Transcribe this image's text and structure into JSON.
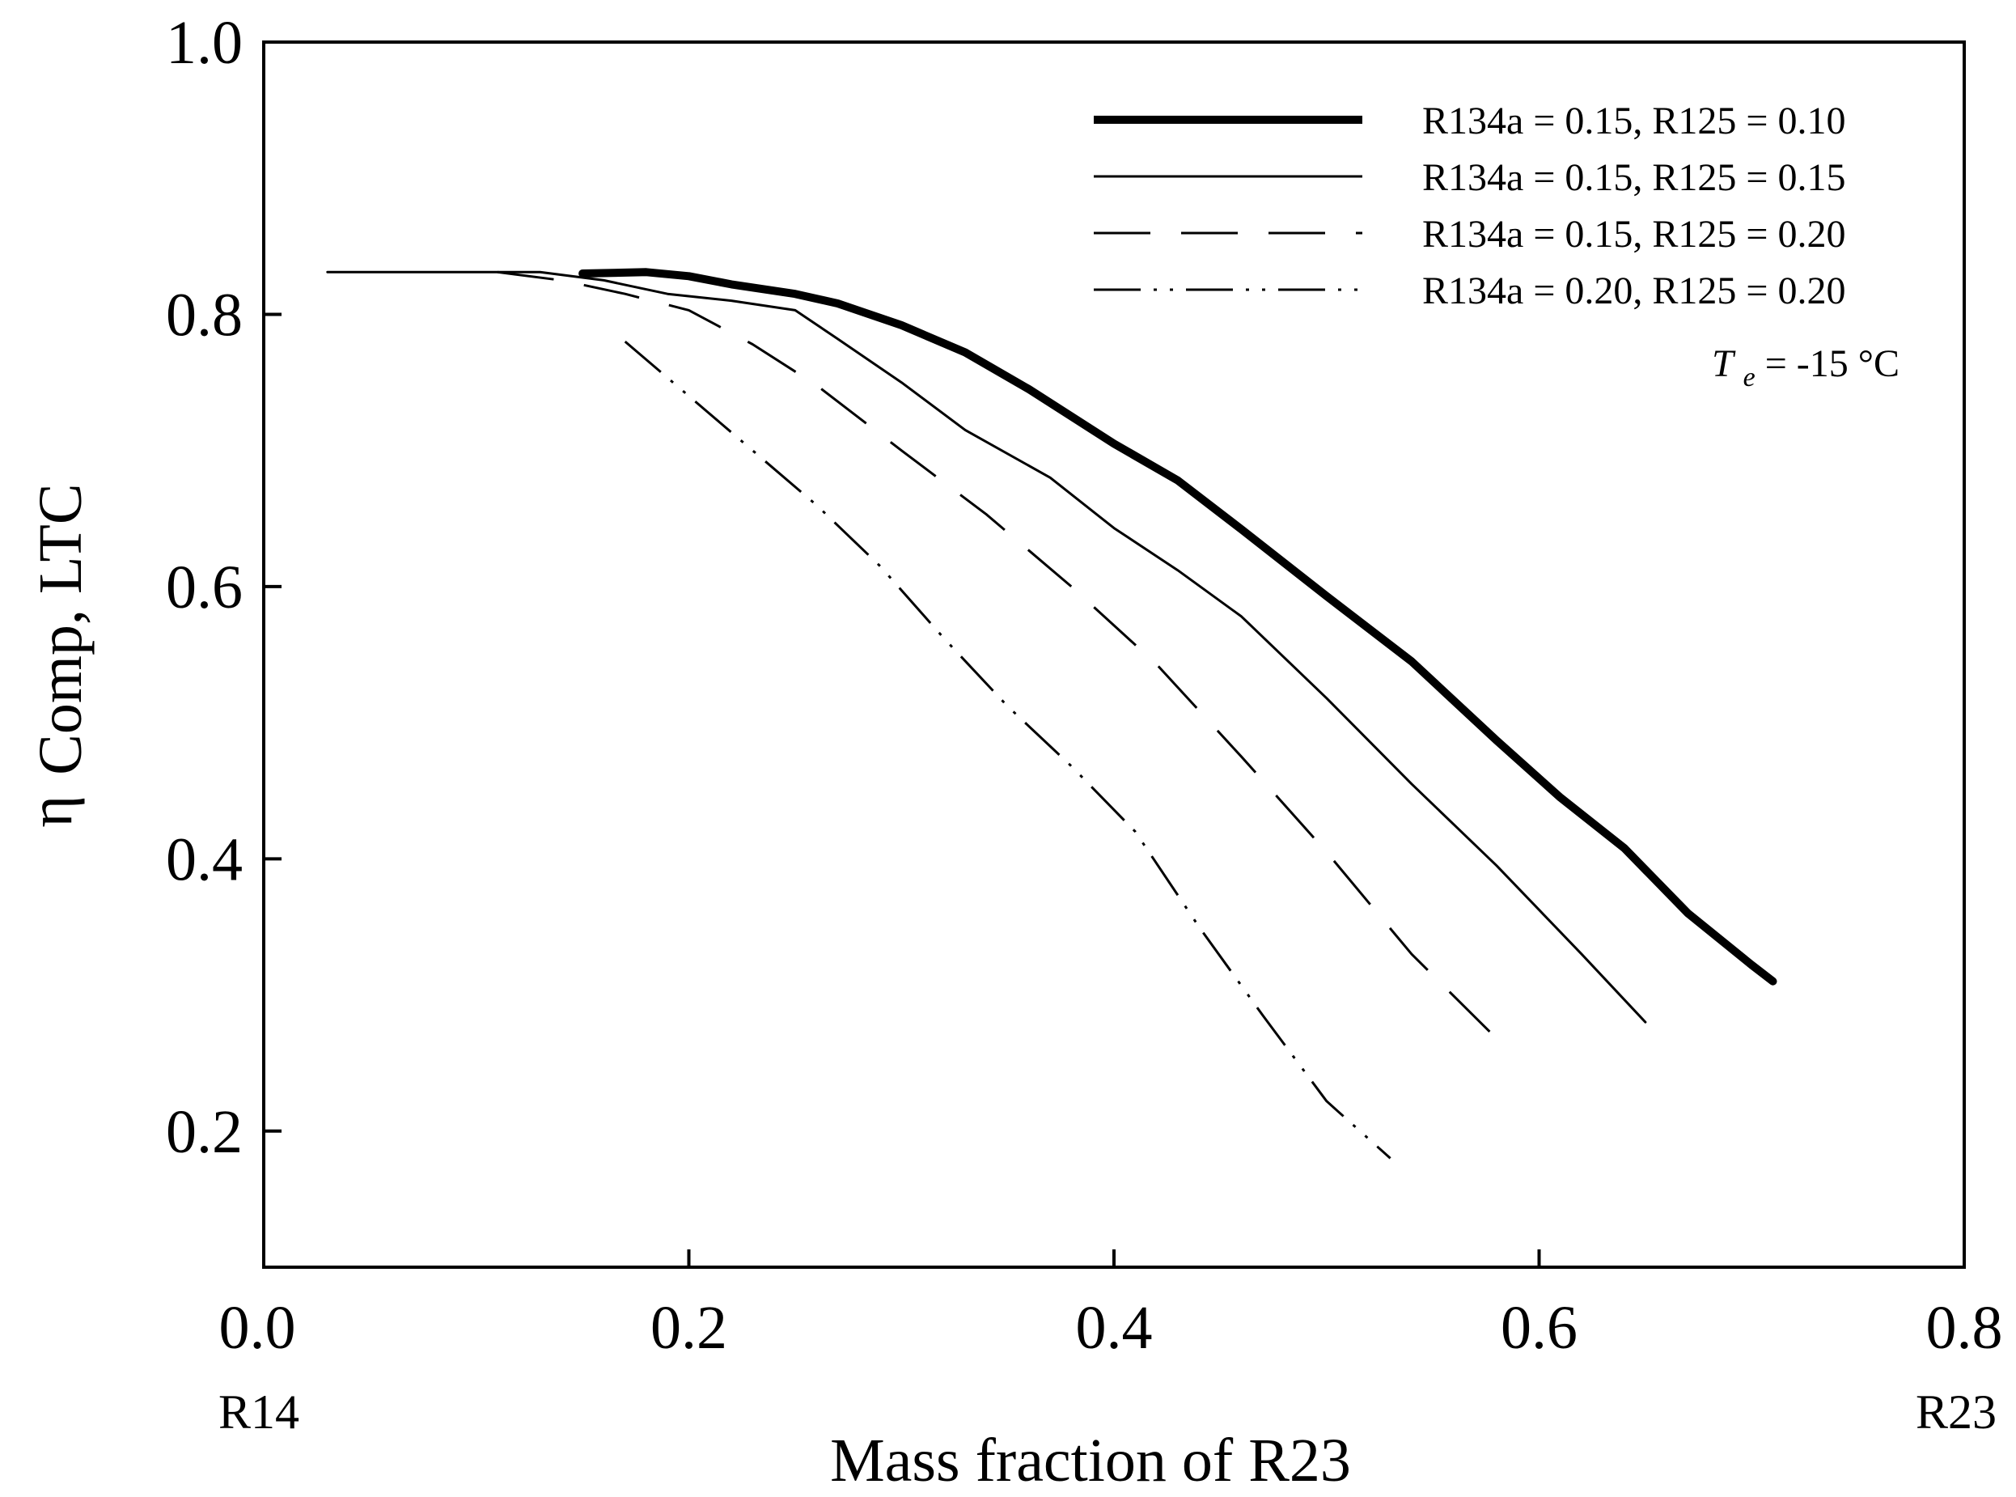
{
  "chart_data": {
    "type": "line",
    "title": "",
    "xlabel": "Mass fraction of R23",
    "ylabel": {
      "symbol": "η",
      "subscript": "Comp, LTC"
    },
    "xlim": [
      0.0,
      0.8
    ],
    "ylim": [
      0.1,
      1.0
    ],
    "x_ticks": [
      {
        "value": 0.0,
        "label": "0.0"
      },
      {
        "value": 0.2,
        "label": "0.2"
      },
      {
        "value": 0.4,
        "label": "0.4"
      },
      {
        "value": 0.6,
        "label": "0.6"
      },
      {
        "value": 0.8,
        "label": "0.8"
      }
    ],
    "x_end_labels": {
      "left": "R14",
      "right": "R23"
    },
    "y_ticks": [
      {
        "value": 0.2,
        "label": "0.2"
      },
      {
        "value": 0.4,
        "label": "0.4"
      },
      {
        "value": 0.6,
        "label": "0.6"
      },
      {
        "value": 0.8,
        "label": "0.8"
      },
      {
        "value": 1.0,
        "label": "1.0"
      }
    ],
    "grid": false,
    "legend_position": "top-right",
    "annotation": {
      "italic": "T",
      "subscript": "e",
      "rest": " = -15 °C"
    },
    "series": [
      {
        "name": "R134a = 0.15, R125 = 0.10",
        "style": "thick-solid",
        "x": [
          0.15,
          0.18,
          0.2,
          0.22,
          0.25,
          0.27,
          0.3,
          0.33,
          0.36,
          0.4,
          0.43,
          0.46,
          0.5,
          0.54,
          0.58,
          0.61,
          0.64,
          0.67,
          0.7,
          0.71
        ],
        "y": [
          0.83,
          0.831,
          0.828,
          0.822,
          0.815,
          0.808,
          0.792,
          0.772,
          0.745,
          0.705,
          0.678,
          0.642,
          0.593,
          0.545,
          0.487,
          0.445,
          0.408,
          0.36,
          0.322,
          0.31
        ]
      },
      {
        "name": "R134a = 0.15, R125 = 0.15",
        "style": "thin-solid",
        "x": [
          0.03,
          0.08,
          0.13,
          0.16,
          0.19,
          0.22,
          0.25,
          0.27,
          0.3,
          0.33,
          0.37,
          0.4,
          0.43,
          0.46,
          0.5,
          0.54,
          0.58,
          0.62,
          0.65
        ],
        "y": [
          0.831,
          0.831,
          0.831,
          0.825,
          0.815,
          0.81,
          0.803,
          0.782,
          0.75,
          0.715,
          0.68,
          0.643,
          0.612,
          0.578,
          0.518,
          0.455,
          0.395,
          0.33,
          0.28
        ]
      },
      {
        "name": "R134a = 0.15, R125 = 0.20",
        "style": "dashed",
        "x": [
          0.11,
          0.14,
          0.17,
          0.2,
          0.23,
          0.26,
          0.3,
          0.34,
          0.38,
          0.42,
          0.46,
          0.5,
          0.54,
          0.58
        ],
        "y": [
          0.831,
          0.825,
          0.815,
          0.803,
          0.778,
          0.748,
          0.7,
          0.653,
          0.6,
          0.543,
          0.475,
          0.405,
          0.33,
          0.268
        ]
      },
      {
        "name": "R134a = 0.20, R125 = 0.20",
        "style": "dash-dot-dot",
        "x": [
          0.17,
          0.2,
          0.23,
          0.26,
          0.29,
          0.32,
          0.35,
          0.38,
          0.41,
          0.44,
          0.47,
          0.5,
          0.53
        ],
        "y": [
          0.78,
          0.74,
          0.7,
          0.66,
          0.615,
          0.562,
          0.512,
          0.468,
          0.42,
          0.35,
          0.285,
          0.222,
          0.18
        ]
      }
    ]
  }
}
